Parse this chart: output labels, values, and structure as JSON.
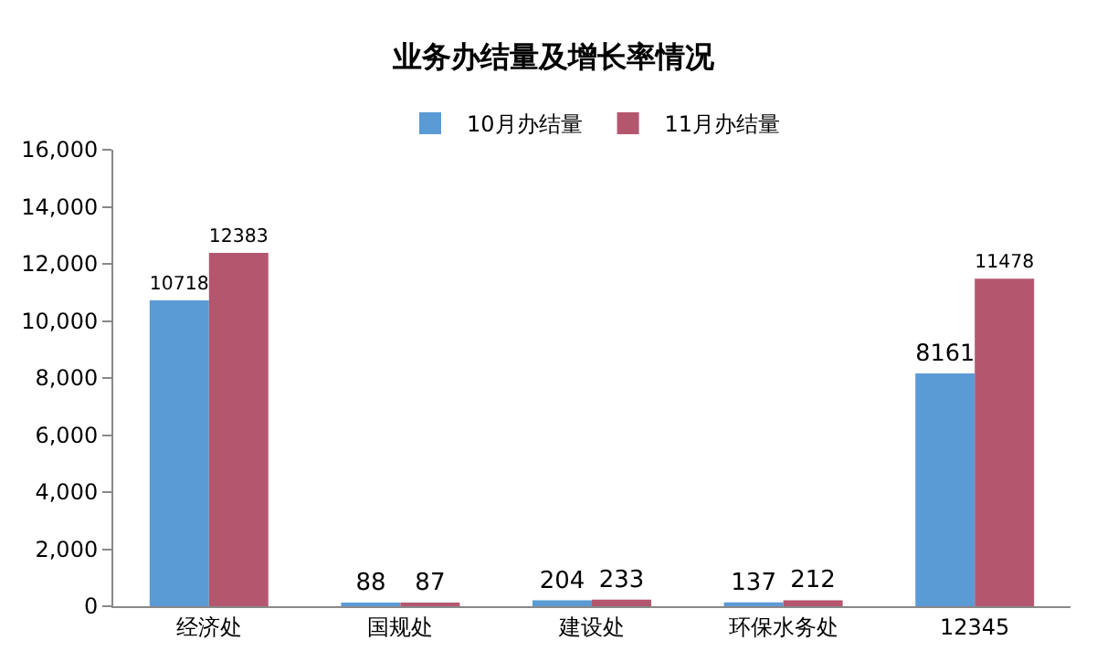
{
  "chart_data": {
    "type": "bar",
    "title": "业务办结量及增长率情况",
    "categories": [
      "经济处",
      "国规处",
      "建设处",
      "环保水务处",
      "12345"
    ],
    "series": [
      {
        "name": "10月办结量",
        "color": "#5b9bd5",
        "values": [
          10718,
          88,
          204,
          137,
          8161
        ]
      },
      {
        "name": "11月办结量",
        "color": "#b5566f",
        "values": [
          12383,
          87,
          233,
          212,
          11478
        ]
      }
    ],
    "ylim": [
      0,
      16000
    ],
    "yticks": [
      0,
      {
        "value": 2000,
        "label": "2,000"
      },
      {
        "value": 4000,
        "label": "4,000"
      },
      {
        "value": 6000,
        "label": "6,000"
      },
      {
        "value": 8000,
        "label": "8,000"
      },
      {
        "value": 10000,
        "label": "10,000"
      },
      {
        "value": 12000,
        "label": "12,000"
      },
      {
        "value": 14000,
        "label": "14,000"
      },
      {
        "value": 16000,
        "label": "16,000"
      }
    ],
    "data_labels": true,
    "grid": false,
    "legend": "top"
  }
}
